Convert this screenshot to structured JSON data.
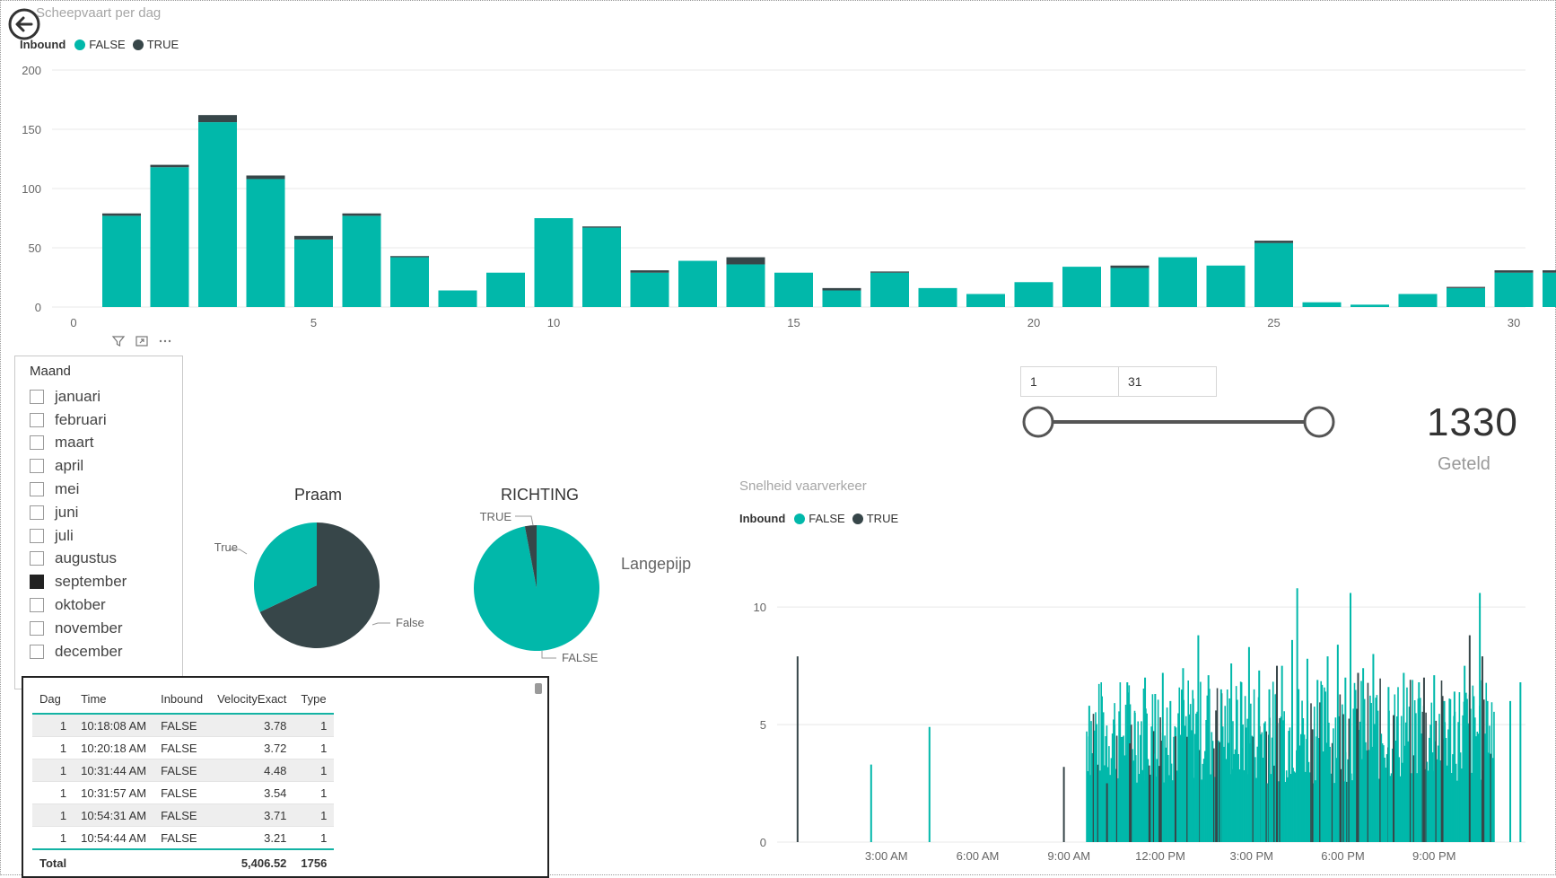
{
  "colors": {
    "accent": "#01b8aa",
    "dark": "#374649",
    "grid": "#e8e8e8"
  },
  "top_chart": {
    "title": "Scheepvaart per dag",
    "legend_title": "Inbound",
    "legend_false": "FALSE",
    "legend_true": "TRUE"
  },
  "slicer": {
    "title": "Maand",
    "items": [
      {
        "label": "januari",
        "checked": false
      },
      {
        "label": "februari",
        "checked": false
      },
      {
        "label": "maart",
        "checked": false
      },
      {
        "label": "april",
        "checked": false
      },
      {
        "label": "mei",
        "checked": false
      },
      {
        "label": "juni",
        "checked": false
      },
      {
        "label": "juli",
        "checked": false
      },
      {
        "label": "augustus",
        "checked": false
      },
      {
        "label": "september",
        "checked": true
      },
      {
        "label": "oktober",
        "checked": false
      },
      {
        "label": "november",
        "checked": false
      },
      {
        "label": "december",
        "checked": false
      }
    ]
  },
  "pie_praam": {
    "title": "Praam",
    "label_true": "True",
    "label_false": "False"
  },
  "pie_richting": {
    "title": "RICHTING",
    "label_true": "TRUE",
    "label_false": "FALSE",
    "side_label": "Langepijp"
  },
  "range": {
    "from": "1",
    "to": "31"
  },
  "kpi": {
    "value": "1330",
    "label": "Geteld"
  },
  "bottom_chart": {
    "title": "Snelheid vaarverkeer",
    "legend_title": "Inbound",
    "legend_false": "FALSE",
    "legend_true": "TRUE"
  },
  "table": {
    "headers": [
      "Dag",
      "Time",
      "Inbound",
      "VelocityExact",
      "Type"
    ],
    "rows": [
      [
        "1",
        "10:18:08 AM",
        "FALSE",
        "3.78",
        "1"
      ],
      [
        "1",
        "10:20:18 AM",
        "FALSE",
        "3.72",
        "1"
      ],
      [
        "1",
        "10:31:44 AM",
        "FALSE",
        "4.48",
        "1"
      ],
      [
        "1",
        "10:31:57 AM",
        "FALSE",
        "3.54",
        "1"
      ],
      [
        "1",
        "10:54:31 AM",
        "FALSE",
        "3.71",
        "1"
      ],
      [
        "1",
        "10:54:44 AM",
        "FALSE",
        "3.21",
        "1"
      ]
    ],
    "total_label": "Total",
    "total_velocity": "5,406.52",
    "total_type": "1756"
  },
  "chart_data": [
    {
      "type": "bar",
      "stacked": true,
      "title": "Scheepvaart per dag",
      "legend_title": "Inbound",
      "categories": [
        1,
        2,
        3,
        4,
        5,
        6,
        7,
        8,
        9,
        10,
        11,
        12,
        13,
        14,
        15,
        16,
        17,
        18,
        19,
        20,
        21,
        22,
        23,
        24,
        25,
        26,
        27,
        28,
        29,
        30,
        31
      ],
      "series": [
        {
          "name": "FALSE",
          "values": [
            77,
            118,
            156,
            108,
            57,
            77,
            42,
            14,
            29,
            75,
            67,
            29,
            39,
            36,
            29,
            14,
            29,
            16,
            11,
            21,
            34,
            33,
            42,
            35,
            54,
            4,
            2,
            11,
            16,
            29,
            29
          ]
        },
        {
          "name": "TRUE",
          "values": [
            2,
            2,
            6,
            3,
            3,
            2,
            1,
            0,
            0,
            0,
            1,
            2,
            0,
            6,
            0,
            2,
            1,
            0,
            0,
            0,
            0,
            2,
            0,
            0,
            2,
            0,
            0,
            0,
            1,
            2,
            2
          ]
        }
      ],
      "xticks": [
        0,
        5,
        10,
        15,
        20,
        25,
        30
      ],
      "yticks": [
        0,
        50,
        100,
        150,
        200
      ],
      "ylim": [
        0,
        200
      ],
      "grid": true,
      "legend_position": "top-left"
    },
    {
      "type": "pie",
      "title": "Praam",
      "slices": [
        {
          "label": "True",
          "value": 32
        },
        {
          "label": "False",
          "value": 68
        }
      ]
    },
    {
      "type": "pie",
      "title": "RICHTING",
      "slices": [
        {
          "label": "TRUE",
          "value": 3
        },
        {
          "label": "FALSE",
          "value": 97
        }
      ],
      "annotation": "Langepijp"
    },
    {
      "type": "bar",
      "title": "Snelheid vaarverkeer",
      "legend_title": "Inbound",
      "x_type": "time",
      "xticks": [
        "3:00 AM",
        "6:00 AM",
        "9:00 AM",
        "12:00 PM",
        "3:00 PM",
        "6:00 PM",
        "9:00 PM"
      ],
      "yticks": [
        0,
        5,
        10
      ],
      "ylim": [
        0,
        11
      ],
      "series": [
        {
          "name": "FALSE",
          "spikes": [
            [
              "2:30 AM",
              3.3
            ],
            [
              "4:25 AM",
              4.9
            ],
            [
              "9:40 AM",
              5.8
            ],
            [
              "10:05 AM",
              6.2
            ],
            [
              "10:30 AM",
              5.0
            ],
            [
              "10:55 AM",
              6.8
            ],
            [
              "11:10 AM",
              5.5
            ],
            [
              "11:30 AM",
              7.0
            ],
            [
              "11:50 AM",
              6.3
            ],
            [
              "12:05 PM",
              7.2
            ],
            [
              "12:20 PM",
              6.0
            ],
            [
              "12:45 PM",
              7.4
            ],
            [
              "1:05 PM",
              6.1
            ],
            [
              "1:15 PM",
              8.8
            ],
            [
              "1:35 PM",
              7.1
            ],
            [
              "2:00 PM",
              6.5
            ],
            [
              "2:20 PM",
              7.6
            ],
            [
              "2:40 PM",
              6.8
            ],
            [
              "2:55 PM",
              8.3
            ],
            [
              "3:15 PM",
              7.3
            ],
            [
              "3:35 PM",
              6.5
            ],
            [
              "4:00 PM",
              7.5
            ],
            [
              "4:20 PM",
              8.6
            ],
            [
              "4:30 PM",
              10.8
            ],
            [
              "4:50 PM",
              7.8
            ],
            [
              "5:10 PM",
              6.9
            ],
            [
              "5:30 PM",
              7.9
            ],
            [
              "5:50 PM",
              8.4
            ],
            [
              "6:05 PM",
              7.0
            ],
            [
              "6:15 PM",
              10.6
            ],
            [
              "6:40 PM",
              7.4
            ],
            [
              "7:00 PM",
              8.0
            ],
            [
              "7:30 PM",
              6.6
            ],
            [
              "8:00 PM",
              7.2
            ],
            [
              "8:30 PM",
              6.8
            ],
            [
              "9:00 PM",
              7.1
            ],
            [
              "9:20 PM",
              6.0
            ],
            [
              "9:40 PM",
              6.4
            ],
            [
              "10:00 PM",
              7.5
            ],
            [
              "10:30 PM",
              10.6
            ],
            [
              "10:45 PM",
              6.0
            ],
            [
              "11:30 PM",
              6.0
            ],
            [
              "11:50 PM",
              6.8
            ]
          ]
        },
        {
          "name": "TRUE",
          "spikes": [
            [
              "0:05 AM",
              7.9
            ],
            [
              "8:50 AM",
              3.2
            ],
            [
              "10:15 AM",
              2.5
            ],
            [
              "11:00 AM",
              4.2
            ],
            [
              "12:30 PM",
              4.5
            ],
            [
              "1:50 PM",
              5.6
            ],
            [
              "3:50 PM",
              7.5
            ],
            [
              "5:00 PM",
              4.8
            ],
            [
              "6:30 PM",
              7.2
            ],
            [
              "7:40 PM",
              5.4
            ],
            [
              "8:40 PM",
              7.0
            ],
            [
              "10:10 PM",
              8.8
            ],
            [
              "10:35 PM",
              7.9
            ]
          ]
        }
      ],
      "legend_position": "top-left"
    }
  ]
}
